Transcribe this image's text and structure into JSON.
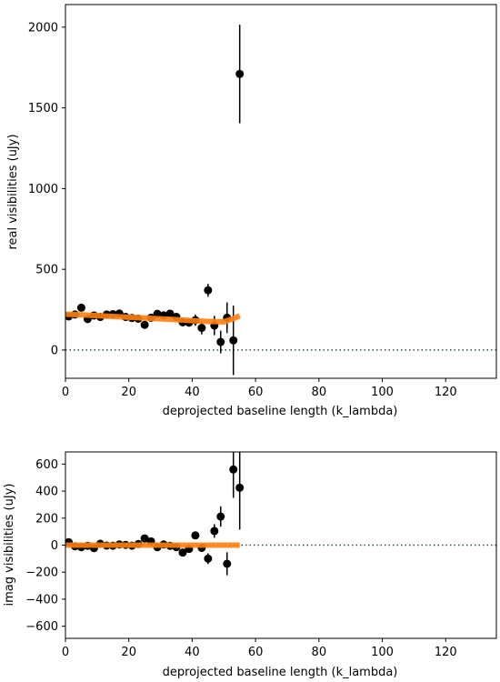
{
  "chart_data": [
    {
      "type": "scatter",
      "panel": "top",
      "xlabel": "deprojected baseline length (k_lambda)",
      "ylabel": "real visibilities (uJy)",
      "xlim": [
        0,
        136
      ],
      "ylim": [
        -175,
        2140
      ],
      "xticks": [
        0,
        20,
        40,
        60,
        80,
        100,
        120
      ],
      "yticks": [
        0,
        500,
        1000,
        1500,
        2000
      ],
      "zero_line": {
        "y": 0,
        "style": "dotted",
        "color": "#2f4f4f"
      },
      "series": [
        {
          "kind": "errorbar",
          "color": "#000000",
          "points": [
            {
              "x": 1,
              "y": 208,
              "err": 15
            },
            {
              "x": 3,
              "y": 220,
              "err": 15
            },
            {
              "x": 5,
              "y": 262,
              "err": 15
            },
            {
              "x": 7,
              "y": 192,
              "err": 15
            },
            {
              "x": 9,
              "y": 214,
              "err": 15
            },
            {
              "x": 11,
              "y": 205,
              "err": 15
            },
            {
              "x": 13,
              "y": 220,
              "err": 15
            },
            {
              "x": 15,
              "y": 222,
              "err": 15
            },
            {
              "x": 17,
              "y": 226,
              "err": 15
            },
            {
              "x": 19,
              "y": 205,
              "err": 15
            },
            {
              "x": 21,
              "y": 198,
              "err": 15
            },
            {
              "x": 23,
              "y": 194,
              "err": 15
            },
            {
              "x": 25,
              "y": 156,
              "err": 15
            },
            {
              "x": 27,
              "y": 200,
              "err": 15
            },
            {
              "x": 29,
              "y": 224,
              "err": 15
            },
            {
              "x": 31,
              "y": 215,
              "err": 15
            },
            {
              "x": 33,
              "y": 225,
              "err": 20
            },
            {
              "x": 35,
              "y": 205,
              "err": 20
            },
            {
              "x": 37,
              "y": 172,
              "err": 20
            },
            {
              "x": 39,
              "y": 170,
              "err": 25
            },
            {
              "x": 41,
              "y": 185,
              "err": 35
            },
            {
              "x": 43,
              "y": 137,
              "err": 40
            },
            {
              "x": 45,
              "y": 370,
              "err": 40
            },
            {
              "x": 47,
              "y": 152,
              "err": 60
            },
            {
              "x": 49,
              "y": 50,
              "err": 70
            },
            {
              "x": 51,
              "y": 200,
              "err": 95
            },
            {
              "x": 53,
              "y": 60,
              "err": 215
            },
            {
              "x": 55,
              "y": 1710,
              "err": 305
            }
          ]
        },
        {
          "kind": "model",
          "color": "#ff7f0e",
          "x": [
            0,
            5,
            10,
            15,
            20,
            25,
            30,
            35,
            40,
            45,
            50,
            53,
            55
          ],
          "y": [
            222,
            218,
            213,
            208,
            203,
            198,
            193,
            188,
            182,
            177,
            175,
            195,
            212
          ]
        }
      ]
    },
    {
      "type": "scatter",
      "panel": "bottom",
      "xlabel": "deprojected baseline length (k_lambda)",
      "ylabel": "imag visibilities (uJy)",
      "xlim": [
        0,
        136
      ],
      "ylim": [
        -690,
        690
      ],
      "xticks": [
        0,
        20,
        40,
        60,
        80,
        100,
        120
      ],
      "yticks": [
        -600,
        -400,
        -200,
        0,
        200,
        400,
        600
      ],
      "zero_line": {
        "y": 0,
        "style": "dotted",
        "color": "#2f4f4f"
      },
      "series": [
        {
          "kind": "errorbar",
          "color": "#000000",
          "points": [
            {
              "x": 1,
              "y": 22,
              "err": 10
            },
            {
              "x": 3,
              "y": -8,
              "err": 10
            },
            {
              "x": 5,
              "y": -15,
              "err": 10
            },
            {
              "x": 7,
              "y": -5,
              "err": 10
            },
            {
              "x": 9,
              "y": -22,
              "err": 10
            },
            {
              "x": 11,
              "y": 10,
              "err": 10
            },
            {
              "x": 13,
              "y": -3,
              "err": 10
            },
            {
              "x": 15,
              "y": -4,
              "err": 10
            },
            {
              "x": 17,
              "y": 5,
              "err": 10
            },
            {
              "x": 19,
              "y": 2,
              "err": 10
            },
            {
              "x": 21,
              "y": -4,
              "err": 10
            },
            {
              "x": 23,
              "y": 8,
              "err": 10
            },
            {
              "x": 25,
              "y": 50,
              "err": 10
            },
            {
              "x": 27,
              "y": 28,
              "err": 10
            },
            {
              "x": 29,
              "y": -15,
              "err": 15
            },
            {
              "x": 31,
              "y": 5,
              "err": 15
            },
            {
              "x": 33,
              "y": -5,
              "err": 15
            },
            {
              "x": 35,
              "y": -15,
              "err": 15
            },
            {
              "x": 37,
              "y": -55,
              "err": 20
            },
            {
              "x": 39,
              "y": -28,
              "err": 20
            },
            {
              "x": 41,
              "y": 72,
              "err": 25
            },
            {
              "x": 43,
              "y": -20,
              "err": 30
            },
            {
              "x": 45,
              "y": -100,
              "err": 40
            },
            {
              "x": 47,
              "y": 105,
              "err": 50
            },
            {
              "x": 49,
              "y": 212,
              "err": 75
            },
            {
              "x": 51,
              "y": -138,
              "err": 85
            },
            {
              "x": 53,
              "y": 560,
              "err": 210
            },
            {
              "x": 55,
              "y": 425,
              "err": 310
            }
          ]
        },
        {
          "kind": "model",
          "color": "#ff7f0e",
          "x": [
            0,
            10,
            20,
            30,
            40,
            50,
            55
          ],
          "y": [
            0,
            0,
            0,
            0,
            0,
            0,
            0
          ]
        }
      ]
    }
  ]
}
